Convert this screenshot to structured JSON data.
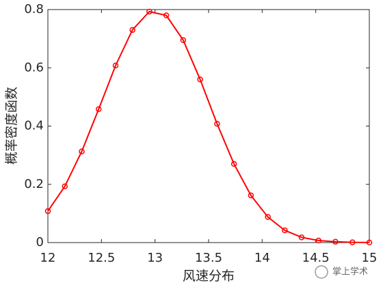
{
  "chart_data": {
    "type": "line",
    "x_label": "风速分布",
    "y_label": "概率密度函数",
    "x": [
      12,
      12.158,
      12.316,
      12.474,
      12.632,
      12.789,
      12.947,
      13.105,
      13.263,
      13.421,
      13.579,
      13.737,
      13.895,
      14.053,
      14.211,
      14.368,
      14.526,
      14.684,
      14.842,
      15
    ],
    "series": [
      {
        "color": "#ff0000",
        "marker": "circle",
        "values": [
          0.108,
          0.193,
          0.313,
          0.458,
          0.608,
          0.73,
          0.793,
          0.78,
          0.695,
          0.56,
          0.408,
          0.27,
          0.162,
          0.088,
          0.042,
          0.018,
          0.007,
          0.003,
          0.001,
          0.0003
        ]
      }
    ],
    "xlim": [
      12,
      15
    ],
    "xticks": [
      12,
      12.5,
      13,
      13.5,
      14,
      14.5,
      15
    ],
    "ylim": [
      0,
      0.8
    ],
    "yticks": [
      0,
      0.2,
      0.4,
      0.6,
      0.8
    ],
    "watermark": "掌上学术"
  }
}
